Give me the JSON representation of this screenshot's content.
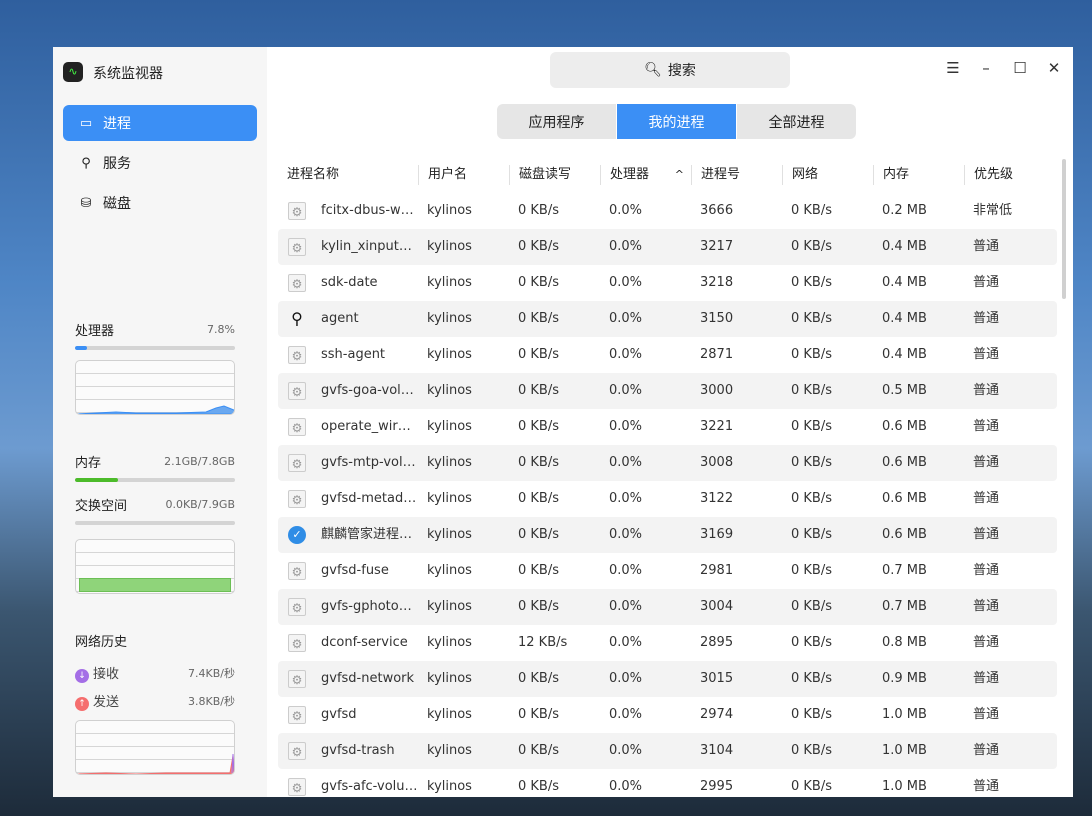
{
  "app": {
    "title": "系统监视器"
  },
  "sidebar": {
    "items": [
      {
        "label": "进程",
        "icon": "monitor-icon",
        "active": true
      },
      {
        "label": "服务",
        "icon": "service-icon"
      },
      {
        "label": "磁盘",
        "icon": "disk-icon"
      }
    ]
  },
  "cpu": {
    "label": "处理器",
    "value": "7.8%",
    "percent": 7.8,
    "color": "#3b8ff5"
  },
  "memory": {
    "label": "内存",
    "value": "2.1GB/7.8GB",
    "percent": 27,
    "color": "#4cbb2a"
  },
  "swap": {
    "label": "交换空间",
    "value": "0.0KB/7.9GB",
    "percent": 0
  },
  "network": {
    "label": "网络历史",
    "recv_label": "接收",
    "recv_value": "7.4KB/秒",
    "send_label": "发送",
    "send_value": "3.8KB/秒",
    "recv_color": "#a46ee6",
    "send_color": "#f56e6e"
  },
  "search": {
    "placeholder": "搜索"
  },
  "tabs": [
    {
      "label": "应用程序"
    },
    {
      "label": "我的进程",
      "active": true
    },
    {
      "label": "全部进程"
    }
  ],
  "table": {
    "columns": [
      "进程名称",
      "用户名",
      "磁盘读写",
      "处理器",
      "进程号",
      "网络",
      "内存",
      "优先级"
    ],
    "sort_column": "处理器",
    "sort_dir": "ascending",
    "rows": [
      {
        "name": "fcitx-dbus-w…",
        "icon": "gear",
        "user": "kylinos",
        "disk": "0 KB/s",
        "cpu": "0.0%",
        "pid": "3666",
        "net": "0 KB/s",
        "mem": "0.2 MB",
        "prio": "非常低"
      },
      {
        "name": "kylin_xinput…",
        "icon": "gear",
        "user": "kylinos",
        "disk": "0 KB/s",
        "cpu": "0.0%",
        "pid": "3217",
        "net": "0 KB/s",
        "mem": "0.4 MB",
        "prio": "普通"
      },
      {
        "name": "sdk-date",
        "icon": "gear",
        "user": "kylinos",
        "disk": "0 KB/s",
        "cpu": "0.0%",
        "pid": "3218",
        "net": "0 KB/s",
        "mem": "0.4 MB",
        "prio": "普通"
      },
      {
        "name": "agent",
        "icon": "pin",
        "user": "kylinos",
        "disk": "0 KB/s",
        "cpu": "0.0%",
        "pid": "3150",
        "net": "0 KB/s",
        "mem": "0.4 MB",
        "prio": "普通"
      },
      {
        "name": "ssh-agent",
        "icon": "gear",
        "user": "kylinos",
        "disk": "0 KB/s",
        "cpu": "0.0%",
        "pid": "2871",
        "net": "0 KB/s",
        "mem": "0.4 MB",
        "prio": "普通"
      },
      {
        "name": "gvfs-goa-vol…",
        "icon": "gear",
        "user": "kylinos",
        "disk": "0 KB/s",
        "cpu": "0.0%",
        "pid": "3000",
        "net": "0 KB/s",
        "mem": "0.5 MB",
        "prio": "普通"
      },
      {
        "name": "operate_wir…",
        "icon": "gear",
        "user": "kylinos",
        "disk": "0 KB/s",
        "cpu": "0.0%",
        "pid": "3221",
        "net": "0 KB/s",
        "mem": "0.6 MB",
        "prio": "普通"
      },
      {
        "name": "gvfs-mtp-vol…",
        "icon": "gear",
        "user": "kylinos",
        "disk": "0 KB/s",
        "cpu": "0.0%",
        "pid": "3008",
        "net": "0 KB/s",
        "mem": "0.6 MB",
        "prio": "普通"
      },
      {
        "name": "gvfsd-metad…",
        "icon": "gear",
        "user": "kylinos",
        "disk": "0 KB/s",
        "cpu": "0.0%",
        "pid": "3122",
        "net": "0 KB/s",
        "mem": "0.6 MB",
        "prio": "普通"
      },
      {
        "name": "麒麟管家进程…",
        "icon": "shield",
        "user": "kylinos",
        "disk": "0 KB/s",
        "cpu": "0.0%",
        "pid": "3169",
        "net": "0 KB/s",
        "mem": "0.6 MB",
        "prio": "普通"
      },
      {
        "name": "gvfsd-fuse",
        "icon": "gear",
        "user": "kylinos",
        "disk": "0 KB/s",
        "cpu": "0.0%",
        "pid": "2981",
        "net": "0 KB/s",
        "mem": "0.7 MB",
        "prio": "普通"
      },
      {
        "name": "gvfs-gphoto…",
        "icon": "gear",
        "user": "kylinos",
        "disk": "0 KB/s",
        "cpu": "0.0%",
        "pid": "3004",
        "net": "0 KB/s",
        "mem": "0.7 MB",
        "prio": "普通"
      },
      {
        "name": "dconf-service",
        "icon": "gear",
        "user": "kylinos",
        "disk": "12 KB/s",
        "cpu": "0.0%",
        "pid": "2895",
        "net": "0 KB/s",
        "mem": "0.8 MB",
        "prio": "普通"
      },
      {
        "name": "gvfsd-network",
        "icon": "gear",
        "user": "kylinos",
        "disk": "0 KB/s",
        "cpu": "0.0%",
        "pid": "3015",
        "net": "0 KB/s",
        "mem": "0.9 MB",
        "prio": "普通"
      },
      {
        "name": "gvfsd",
        "icon": "gear",
        "user": "kylinos",
        "disk": "0 KB/s",
        "cpu": "0.0%",
        "pid": "2974",
        "net": "0 KB/s",
        "mem": "1.0 MB",
        "prio": "普通"
      },
      {
        "name": "gvfsd-trash",
        "icon": "gear",
        "user": "kylinos",
        "disk": "0 KB/s",
        "cpu": "0.0%",
        "pid": "3104",
        "net": "0 KB/s",
        "mem": "1.0 MB",
        "prio": "普通"
      },
      {
        "name": "gvfs-afc-volu…",
        "icon": "gear",
        "user": "kylinos",
        "disk": "0 KB/s",
        "cpu": "0.0%",
        "pid": "2995",
        "net": "0 KB/s",
        "mem": "1.0 MB",
        "prio": "普通"
      }
    ]
  }
}
